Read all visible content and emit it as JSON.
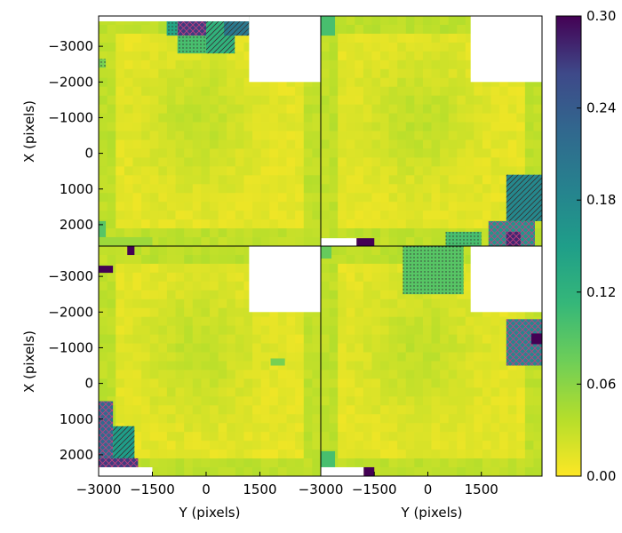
{
  "chart_data": {
    "type": "heatmap",
    "layout": "2x2 grid of heatmap panels sharing axes, one shared colorbar on the right",
    "xlabel": "Y (pixels)",
    "ylabel": "X (pixels)",
    "x_ticks": [
      -3000,
      -1500,
      0,
      1500
    ],
    "x_tick_labels": [
      "−3000",
      "−1500",
      "0",
      "1500"
    ],
    "xlim": [
      -3000,
      3200
    ],
    "y_ticks": [
      -3000,
      -2000,
      -1000,
      0,
      1000,
      2000
    ],
    "y_tick_labels": [
      "−3000",
      "−2000",
      "−1000",
      "0",
      "1000",
      "2000"
    ],
    "ylim": [
      -3850,
      2600
    ],
    "y_axis_inverted": true,
    "colorbar": {
      "colormap": "viridis",
      "range": [
        0.0,
        0.3
      ],
      "ticks": [
        0.0,
        0.06,
        0.12,
        0.18,
        0.24,
        0.3
      ],
      "tick_labels": [
        "0.00",
        "0.06",
        "0.12",
        "0.18",
        "0.24",
        "0.30"
      ]
    },
    "grid": false,
    "panels": [
      {
        "position": "top-left",
        "nan_regions": [
          {
            "ymin": 1200,
            "ymax": 3200,
            "xmin": -3850,
            "xmax": -2000
          },
          {
            "ymin": -3000,
            "ymax": 1200,
            "xmin": -3850,
            "xmax": -3700
          },
          {
            "ymin": -3000,
            "ymax": -2500,
            "xmin": 2600,
            "xmax": 2600
          }
        ],
        "high_regions": [
          {
            "ymin": -800,
            "ymax": 200,
            "xmin": -3850,
            "xmax": -3300,
            "value": 0.27,
            "hatch": "crosshatch"
          },
          {
            "ymin": -1100,
            "ymax": -800,
            "xmin": -3850,
            "xmax": -3300,
            "value": 0.14,
            "hatch": "dots"
          },
          {
            "ymin": -800,
            "ymax": 0,
            "xmin": -3300,
            "xmax": -2800,
            "value": 0.1,
            "hatch": "dots"
          },
          {
            "ymin": 0,
            "ymax": 800,
            "xmin": -3850,
            "xmax": -2800,
            "value": 0.12,
            "hatch": "diagonal"
          },
          {
            "ymin": 500,
            "ymax": 1200,
            "xmin": -3850,
            "xmax": -3300,
            "value": 0.2,
            "hatch": "diagonal"
          },
          {
            "ymin": -3000,
            "ymax": -2800,
            "xmin": -2650,
            "xmax": -2400,
            "value": 0.07,
            "hatch": "dots"
          },
          {
            "ymin": -3000,
            "ymax": -2800,
            "xmin": 1900,
            "xmax": 2600,
            "value": 0.09,
            "hatch": "none"
          },
          {
            "ymin": -3000,
            "ymax": -1500,
            "xmin": 2350,
            "xmax": 2600,
            "value": 0.05,
            "hatch": "none"
          }
        ]
      },
      {
        "position": "top-right",
        "nan_regions": [
          {
            "ymin": 1200,
            "ymax": 3200,
            "xmin": -3850,
            "xmax": -2000
          },
          {
            "ymin": -3000,
            "ymax": -2000,
            "xmin": 2380,
            "xmax": 2600
          }
        ],
        "high_regions": [
          {
            "ymin": 2200,
            "ymax": 3200,
            "xmin": 600,
            "xmax": 1900,
            "value": 0.18,
            "hatch": "diagonal"
          },
          {
            "ymin": 1700,
            "ymax": 3000,
            "xmin": 1900,
            "xmax": 2600,
            "value": 0.16,
            "hatch": "crosshatch"
          },
          {
            "ymin": 2200,
            "ymax": 2600,
            "xmin": 2200,
            "xmax": 2600,
            "value": 0.28,
            "hatch": "crosshatch"
          },
          {
            "ymin": 500,
            "ymax": 1500,
            "xmin": 2200,
            "xmax": 2600,
            "value": 0.1,
            "hatch": "dots"
          },
          {
            "ymin": -2000,
            "ymax": -1500,
            "xmin": 2380,
            "xmax": 2600,
            "value": 0.3,
            "hatch": "none"
          },
          {
            "ymin": -3000,
            "ymax": -2600,
            "xmin": -3850,
            "xmax": -3300,
            "value": 0.1,
            "hatch": "none"
          }
        ]
      },
      {
        "position": "bottom-left",
        "nan_regions": [
          {
            "ymin": 1200,
            "ymax": 3200,
            "xmin": -3850,
            "xmax": -2000
          },
          {
            "ymin": -3000,
            "ymax": -1500,
            "xmin": 2350,
            "xmax": 2600
          }
        ],
        "high_regions": [
          {
            "ymin": -3000,
            "ymax": -2600,
            "xmin": -3300,
            "xmax": -3100,
            "value": 0.3,
            "hatch": "none"
          },
          {
            "ymin": -2200,
            "ymax": -2000,
            "xmin": -3850,
            "xmax": -3600,
            "value": 0.3,
            "hatch": "none"
          },
          {
            "ymin": -3000,
            "ymax": -2600,
            "xmin": 500,
            "xmax": 2100,
            "value": 0.22,
            "hatch": "crosshatch"
          },
          {
            "ymin": -2600,
            "ymax": -2000,
            "xmin": 1200,
            "xmax": 2600,
            "value": 0.15,
            "hatch": "diagonal"
          },
          {
            "ymin": -3000,
            "ymax": -1900,
            "xmin": 2100,
            "xmax": 2600,
            "value": 0.27,
            "hatch": "crosshatch"
          },
          {
            "ymin": -1800,
            "ymax": -1500,
            "xmin": 2350,
            "xmax": 2600,
            "value": 0.3,
            "hatch": "none"
          },
          {
            "ymin": 1800,
            "ymax": 2200,
            "xmin": -700,
            "xmax": -500,
            "value": 0.07,
            "hatch": "none"
          }
        ]
      },
      {
        "position": "bottom-right",
        "nan_regions": [
          {
            "ymin": 1200,
            "ymax": 3200,
            "xmin": -3850,
            "xmax": -2000
          },
          {
            "ymin": -3000,
            "ymax": -1800,
            "xmin": 2350,
            "xmax": 2600
          }
        ],
        "high_regions": [
          {
            "ymin": -700,
            "ymax": 1000,
            "xmin": -3850,
            "xmax": -2500,
            "value": 0.09,
            "hatch": "dots"
          },
          {
            "ymin": 2200,
            "ymax": 3200,
            "xmin": -1800,
            "xmax": -500,
            "value": 0.18,
            "hatch": "crosshatch"
          },
          {
            "ymin": 2900,
            "ymax": 3200,
            "xmin": -1400,
            "xmax": -1100,
            "value": 0.3,
            "hatch": "none"
          },
          {
            "ymin": -3000,
            "ymax": -2600,
            "xmin": 1900,
            "xmax": 2400,
            "value": 0.1,
            "hatch": "none"
          },
          {
            "ymin": -1800,
            "ymax": -1500,
            "xmin": 2350,
            "xmax": 2600,
            "value": 0.3,
            "hatch": "none"
          },
          {
            "ymin": -3000,
            "ymax": -2700,
            "xmin": -3850,
            "xmax": -3500,
            "value": 0.08,
            "hatch": "none"
          }
        ]
      }
    ]
  }
}
